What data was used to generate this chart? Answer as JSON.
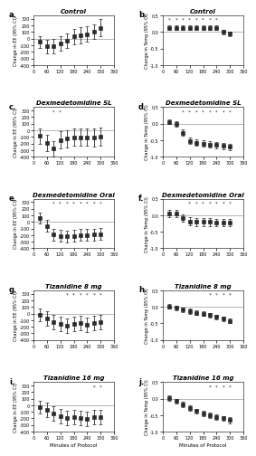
{
  "panels": [
    {
      "label": "a.",
      "title": "Control",
      "ylabel": "Change in EE (95% CI)",
      "ylim": [
        -400,
        350
      ],
      "yticks": [
        -400,
        -300,
        -200,
        -100,
        0,
        100,
        200,
        300
      ],
      "x": [
        30,
        60,
        90,
        120,
        150,
        180,
        210,
        240,
        270,
        300
      ],
      "y": [
        -50,
        -120,
        -120,
        -80,
        -30,
        30,
        50,
        70,
        100,
        160
      ],
      "ci_low": [
        -140,
        -220,
        -230,
        -190,
        -140,
        -90,
        -70,
        -50,
        -10,
        30
      ],
      "ci_high": [
        40,
        -20,
        -10,
        30,
        80,
        150,
        170,
        190,
        210,
        290
      ],
      "sig": [],
      "type": "EE"
    },
    {
      "label": "b.",
      "title": "Control",
      "ylabel": "Change in Temp (95% CI)",
      "ylim": [
        -1.0,
        0.5
      ],
      "yticks": [
        -1.0,
        -0.5,
        0.0,
        0.5
      ],
      "x": [
        30,
        60,
        90,
        120,
        150,
        180,
        210,
        240,
        270,
        300
      ],
      "y": [
        0.12,
        0.12,
        0.12,
        0.12,
        0.12,
        0.12,
        0.12,
        0.12,
        0.0,
        -0.05
      ],
      "ci_low": [
        0.05,
        0.05,
        0.05,
        0.05,
        0.05,
        0.05,
        0.05,
        0.05,
        -0.07,
        -0.12
      ],
      "ci_high": [
        0.19,
        0.19,
        0.19,
        0.19,
        0.19,
        0.19,
        0.19,
        0.19,
        0.07,
        0.02
      ],
      "sig": [
        30,
        60,
        90,
        120,
        150,
        180,
        210,
        240
      ],
      "type": "Temp"
    },
    {
      "label": "c.",
      "title": "Dexmedetomidine SL",
      "ylabel": "Change in EE (95% CI)",
      "ylim": [
        -400,
        350
      ],
      "yticks": [
        -400,
        -300,
        -200,
        -100,
        0,
        100,
        200,
        300
      ],
      "x": [
        30,
        60,
        90,
        120,
        150,
        180,
        210,
        240,
        270,
        300
      ],
      "y": [
        -90,
        -190,
        -280,
        -150,
        -130,
        -110,
        -110,
        -110,
        -110,
        -100
      ],
      "ci_low": [
        -210,
        -310,
        -400,
        -280,
        -260,
        -240,
        -240,
        -240,
        -250,
        -240
      ],
      "ci_high": [
        30,
        -70,
        -160,
        -20,
        0,
        20,
        20,
        20,
        30,
        40
      ],
      "sig": [
        90,
        120
      ],
      "type": "EE"
    },
    {
      "label": "d.",
      "title": "Dexmedetomidine SL",
      "ylabel": "Change in Temp (95% CI)",
      "ylim": [
        -1.0,
        0.5
      ],
      "yticks": [
        -1.0,
        -0.5,
        0.0,
        0.5
      ],
      "x": [
        30,
        60,
        90,
        120,
        150,
        180,
        210,
        240,
        270,
        300
      ],
      "y": [
        0.05,
        0.0,
        -0.28,
        -0.52,
        -0.58,
        -0.6,
        -0.63,
        -0.65,
        -0.68,
        -0.7
      ],
      "ci_low": [
        -0.02,
        -0.08,
        -0.38,
        -0.62,
        -0.68,
        -0.7,
        -0.73,
        -0.75,
        -0.78,
        -0.8
      ],
      "ci_high": [
        0.12,
        0.08,
        -0.18,
        -0.42,
        -0.48,
        -0.5,
        -0.53,
        -0.55,
        -0.58,
        -0.6
      ],
      "sig": [
        90,
        120,
        150,
        180,
        210,
        240,
        270,
        300
      ],
      "type": "Temp"
    },
    {
      "label": "e.",
      "title": "Dexmedetomidine Oral",
      "ylabel": "Change in EE (95% CI)",
      "ylim": [
        -400,
        350
      ],
      "yticks": [
        -400,
        -300,
        -200,
        -100,
        0,
        100,
        200,
        300
      ],
      "x": [
        30,
        60,
        90,
        120,
        150,
        180,
        210,
        240,
        270,
        300
      ],
      "y": [
        60,
        -60,
        -190,
        -210,
        -220,
        -210,
        -200,
        -200,
        -195,
        -185
      ],
      "ci_low": [
        -20,
        -150,
        -280,
        -300,
        -310,
        -300,
        -290,
        -290,
        -285,
        -275
      ],
      "ci_high": [
        140,
        30,
        -100,
        -120,
        -130,
        -120,
        -110,
        -110,
        -105,
        -95
      ],
      "sig": [
        90,
        120,
        150,
        180,
        210,
        240,
        270,
        300
      ],
      "type": "EE"
    },
    {
      "label": "f.",
      "title": "Dexmedetomidine Oral",
      "ylabel": "Change in Temp (95% CI)",
      "ylim": [
        -1.0,
        0.5
      ],
      "yticks": [
        -1.0,
        -0.5,
        0.0,
        0.5
      ],
      "x": [
        30,
        60,
        90,
        120,
        150,
        180,
        210,
        240,
        270,
        300
      ],
      "y": [
        0.05,
        0.05,
        -0.08,
        -0.18,
        -0.2,
        -0.2,
        -0.2,
        -0.22,
        -0.22,
        -0.22
      ],
      "ci_low": [
        -0.05,
        -0.05,
        -0.18,
        -0.3,
        -0.32,
        -0.32,
        -0.32,
        -0.34,
        -0.34,
        -0.34
      ],
      "ci_high": [
        0.15,
        0.15,
        0.02,
        -0.06,
        -0.08,
        -0.08,
        -0.08,
        -0.1,
        -0.1,
        -0.1
      ],
      "sig": [
        120,
        150,
        180,
        210,
        240,
        270,
        300
      ],
      "type": "Temp"
    },
    {
      "label": "g.",
      "title": "Tizanidine 8 mg",
      "ylabel": "Change in EE (95% CI)",
      "ylim": [
        -400,
        350
      ],
      "yticks": [
        -400,
        -300,
        -200,
        -100,
        0,
        100,
        200,
        300
      ],
      "x": [
        30,
        60,
        90,
        120,
        150,
        180,
        210,
        240,
        270,
        300
      ],
      "y": [
        -20,
        -80,
        -130,
        -155,
        -185,
        -155,
        -145,
        -165,
        -145,
        -135
      ],
      "ci_low": [
        -120,
        -190,
        -240,
        -265,
        -295,
        -265,
        -255,
        -275,
        -255,
        -245
      ],
      "ci_high": [
        80,
        30,
        -20,
        -45,
        -75,
        -45,
        -35,
        -55,
        -35,
        -25
      ],
      "sig": [
        150,
        180,
        210,
        240,
        270,
        300
      ],
      "type": "EE"
    },
    {
      "label": "h.",
      "title": "Tizanidine 8 mg",
      "ylabel": "Change in Temp (95% CI)",
      "ylim": [
        -1.0,
        0.5
      ],
      "yticks": [
        -1.0,
        -0.5,
        0.0,
        0.5
      ],
      "x": [
        30,
        60,
        90,
        120,
        150,
        180,
        210,
        240,
        270,
        300
      ],
      "y": [
        0.02,
        -0.03,
        -0.08,
        -0.13,
        -0.18,
        -0.2,
        -0.25,
        -0.3,
        -0.36,
        -0.42
      ],
      "ci_low": [
        -0.05,
        -0.1,
        -0.15,
        -0.2,
        -0.25,
        -0.27,
        -0.32,
        -0.37,
        -0.43,
        -0.5
      ],
      "ci_high": [
        0.09,
        0.04,
        -0.01,
        -0.06,
        -0.11,
        -0.13,
        -0.18,
        -0.23,
        -0.29,
        -0.34
      ],
      "sig": [
        210,
        240,
        270,
        300
      ],
      "type": "Temp"
    },
    {
      "label": "i.",
      "title": "Tizanidine 16 mg",
      "ylabel": "Change in EE (95% CI)",
      "ylim": [
        -400,
        350
      ],
      "yticks": [
        -400,
        -300,
        -200,
        -100,
        0,
        100,
        200,
        300
      ],
      "x": [
        30,
        60,
        90,
        120,
        150,
        180,
        210,
        240,
        270,
        300
      ],
      "y": [
        -25,
        -75,
        -125,
        -165,
        -195,
        -185,
        -195,
        -205,
        -185,
        -175
      ],
      "ci_low": [
        -120,
        -185,
        -235,
        -275,
        -305,
        -295,
        -305,
        -315,
        -295,
        -285
      ],
      "ci_high": [
        70,
        35,
        -15,
        -55,
        -85,
        -75,
        -85,
        -95,
        -75,
        -65
      ],
      "sig": [
        270,
        300
      ],
      "type": "EE"
    },
    {
      "label": "j.",
      "title": "Tizanidine 16 mg",
      "ylabel": "Change in Temp (95% CI)",
      "ylim": [
        -1.0,
        0.5
      ],
      "yticks": [
        -1.0,
        -0.5,
        0.0,
        0.5
      ],
      "x": [
        30,
        60,
        90,
        120,
        150,
        180,
        210,
        240,
        270,
        300
      ],
      "y": [
        0.02,
        -0.08,
        -0.18,
        -0.28,
        -0.38,
        -0.44,
        -0.5,
        -0.55,
        -0.6,
        -0.65
      ],
      "ci_low": [
        -0.06,
        -0.16,
        -0.26,
        -0.36,
        -0.46,
        -0.52,
        -0.58,
        -0.63,
        -0.68,
        -0.75
      ],
      "ci_high": [
        0.1,
        0.0,
        -0.1,
        -0.2,
        -0.3,
        -0.36,
        -0.42,
        -0.47,
        -0.52,
        -0.55
      ],
      "sig": [
        210,
        240,
        270,
        300
      ],
      "type": "Temp"
    }
  ],
  "marker_color": "#2b2b2b",
  "line_color": "#aaaaaa",
  "sig_marker": "*",
  "sig_color": "#2b2b2b",
  "background_color": "#ffffff",
  "xlabel": "Minutes of Protocol",
  "xticks": [
    0,
    60,
    120,
    180,
    240,
    300,
    360
  ],
  "xlim": [
    0,
    360
  ]
}
